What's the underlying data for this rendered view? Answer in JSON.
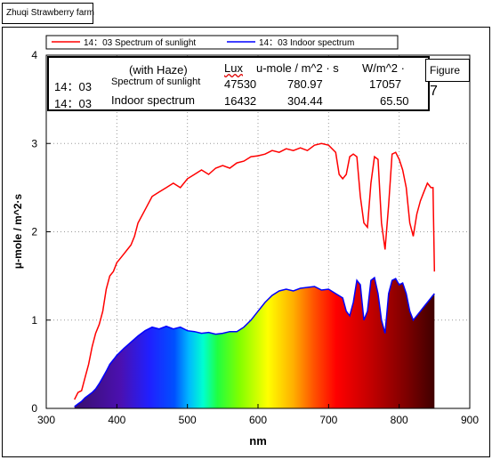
{
  "header": {
    "farm_label": "Zhuqi Strawberry farm"
  },
  "figure_label": {
    "text": "Figure",
    "number": "7"
  },
  "table": {
    "title": "(with Haze)",
    "col_lux": "Lux",
    "col_umole": "u-mole / m^2 · s",
    "col_wm2": "W/m^2 ·",
    "rows": [
      {
        "time": "14：03",
        "name": "Spectrum of sunlight",
        "lux": "47530",
        "umole": "780.97",
        "wm2": "17057"
      },
      {
        "time": "14：03",
        "name": "Indoor spectrum",
        "lux": "16432",
        "umole": "304.44",
        "wm2": "65.50"
      }
    ]
  },
  "chart_data": {
    "type": "line",
    "xlabel": "nm",
    "ylabel": "μ-mole / m^2·s",
    "xlim": [
      300,
      900
    ],
    "ylim": [
      0,
      4
    ],
    "xticks": [
      "300",
      "400",
      "500",
      "600",
      "700",
      "800",
      "900"
    ],
    "yticks": [
      "0",
      "1",
      "2",
      "3",
      "4"
    ],
    "grid": true,
    "legend_position": "top",
    "series": [
      {
        "name": "14：03  Spectrum of sunlight",
        "color": "#ff0000",
        "x": [
          340,
          345,
          350,
          355,
          360,
          365,
          370,
          375,
          380,
          385,
          390,
          395,
          400,
          405,
          410,
          415,
          420,
          425,
          430,
          440,
          450,
          460,
          470,
          480,
          490,
          500,
          510,
          520,
          530,
          540,
          550,
          560,
          570,
          580,
          590,
          600,
          610,
          620,
          630,
          640,
          650,
          660,
          670,
          680,
          690,
          700,
          710,
          715,
          720,
          725,
          730,
          735,
          740,
          745,
          750,
          755,
          760,
          765,
          770,
          775,
          780,
          785,
          790,
          795,
          800,
          805,
          810,
          815,
          820,
          825,
          830,
          835,
          840,
          845,
          848,
          850
        ],
        "y": [
          0.1,
          0.18,
          0.2,
          0.35,
          0.5,
          0.7,
          0.85,
          0.95,
          1.1,
          1.35,
          1.5,
          1.55,
          1.65,
          1.7,
          1.75,
          1.8,
          1.85,
          1.95,
          2.1,
          2.25,
          2.4,
          2.45,
          2.5,
          2.55,
          2.5,
          2.6,
          2.65,
          2.7,
          2.65,
          2.72,
          2.75,
          2.72,
          2.78,
          2.8,
          2.85,
          2.86,
          2.88,
          2.92,
          2.9,
          2.94,
          2.92,
          2.95,
          2.92,
          2.98,
          3.0,
          2.98,
          2.9,
          2.65,
          2.6,
          2.65,
          2.85,
          2.88,
          2.85,
          2.4,
          2.1,
          2.05,
          2.55,
          2.85,
          2.82,
          2.1,
          1.8,
          2.3,
          2.88,
          2.9,
          2.82,
          2.7,
          2.5,
          2.1,
          1.95,
          2.2,
          2.35,
          2.45,
          2.55,
          2.5,
          2.5,
          1.55
        ]
      },
      {
        "name": "14：03  Indoor spectrum",
        "color": "#0000ff",
        "x": [
          340,
          345,
          350,
          355,
          360,
          365,
          370,
          375,
          380,
          385,
          390,
          395,
          400,
          410,
          420,
          430,
          440,
          450,
          460,
          470,
          480,
          490,
          500,
          510,
          520,
          530,
          540,
          550,
          560,
          570,
          580,
          590,
          600,
          610,
          620,
          630,
          640,
          650,
          660,
          670,
          680,
          690,
          700,
          710,
          720,
          725,
          730,
          735,
          740,
          745,
          750,
          755,
          760,
          765,
          770,
          775,
          780,
          785,
          790,
          795,
          800,
          805,
          810,
          815,
          820,
          825,
          830,
          835,
          840,
          845,
          850
        ],
        "y": [
          0.02,
          0.05,
          0.08,
          0.12,
          0.15,
          0.18,
          0.22,
          0.28,
          0.35,
          0.42,
          0.5,
          0.55,
          0.6,
          0.68,
          0.75,
          0.82,
          0.88,
          0.92,
          0.9,
          0.93,
          0.9,
          0.92,
          0.88,
          0.87,
          0.85,
          0.86,
          0.84,
          0.85,
          0.87,
          0.87,
          0.92,
          1.0,
          1.1,
          1.2,
          1.28,
          1.33,
          1.35,
          1.33,
          1.36,
          1.37,
          1.38,
          1.34,
          1.35,
          1.3,
          1.25,
          1.1,
          1.05,
          1.2,
          1.45,
          1.4,
          1.0,
          1.1,
          1.45,
          1.48,
          1.3,
          1.0,
          0.85,
          1.3,
          1.45,
          1.47,
          1.4,
          1.42,
          1.3,
          1.1,
          1.0,
          1.05,
          1.1,
          1.15,
          1.2,
          1.25,
          1.3
        ]
      }
    ]
  }
}
